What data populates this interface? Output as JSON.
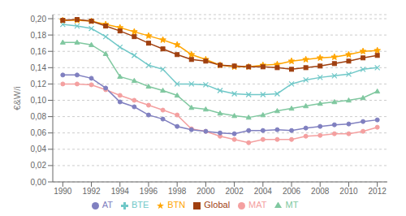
{
  "chart_data": {
    "type": "line",
    "ylabel": "€&W/i",
    "x": [
      1990,
      1991,
      1992,
      1993,
      1994,
      1995,
      1996,
      1997,
      1998,
      1999,
      2000,
      2001,
      2002,
      2003,
      2004,
      2005,
      2006,
      2007,
      2008,
      2009,
      2010,
      2011,
      2012
    ],
    "series": [
      {
        "name": "MAT",
        "color": "#F4A0A0",
        "marker": "circle",
        "values": [
          0.12,
          0.12,
          0.119,
          0.113,
          0.106,
          0.1,
          0.094,
          0.088,
          0.082,
          0.065,
          0.062,
          0.056,
          0.052,
          0.048,
          0.052,
          0.052,
          0.052,
          0.056,
          0.057,
          0.059,
          0.059,
          0.062,
          0.067
        ]
      },
      {
        "name": "AT",
        "color": "#8080C0",
        "marker": "circle",
        "values": [
          0.131,
          0.131,
          0.127,
          0.115,
          0.098,
          0.092,
          0.082,
          0.077,
          0.068,
          0.064,
          0.062,
          0.06,
          0.059,
          0.063,
          0.063,
          0.064,
          0.063,
          0.066,
          0.068,
          0.07,
          0.071,
          0.074,
          0.076
        ]
      },
      {
        "name": "MT",
        "color": "#80C8A0",
        "marker": "triangle",
        "values": [
          0.171,
          0.171,
          0.168,
          0.157,
          0.129,
          0.124,
          0.117,
          0.112,
          0.106,
          0.091,
          0.089,
          0.084,
          0.081,
          0.079,
          0.082,
          0.087,
          0.09,
          0.093,
          0.096,
          0.098,
          0.1,
          0.103,
          0.111
        ]
      },
      {
        "name": "BTE",
        "color": "#70C8C8",
        "marker": "x",
        "values": [
          0.193,
          0.191,
          0.188,
          0.178,
          0.165,
          0.155,
          0.143,
          0.138,
          0.12,
          0.12,
          0.119,
          0.112,
          0.108,
          0.107,
          0.107,
          0.108,
          0.12,
          0.125,
          0.128,
          0.13,
          0.132,
          0.138,
          0.14
        ]
      },
      {
        "name": "BTN",
        "color": "#FFA500",
        "marker": "star",
        "values": [
          0.198,
          0.198,
          0.197,
          0.193,
          0.189,
          0.184,
          0.179,
          0.174,
          0.168,
          0.156,
          0.15,
          0.143,
          0.141,
          0.141,
          0.143,
          0.144,
          0.148,
          0.15,
          0.152,
          0.153,
          0.156,
          0.16,
          0.161
        ]
      },
      {
        "name": "Global",
        "color": "#A04010",
        "marker": "square",
        "values": [
          0.198,
          0.199,
          0.197,
          0.191,
          0.185,
          0.178,
          0.17,
          0.163,
          0.156,
          0.15,
          0.148,
          0.143,
          0.142,
          0.141,
          0.141,
          0.14,
          0.138,
          0.14,
          0.142,
          0.145,
          0.148,
          0.152,
          0.155
        ]
      }
    ],
    "xlim": [
      1989.3,
      2012.7
    ],
    "xticks": [
      1990,
      1992,
      1994,
      1996,
      1998,
      2000,
      2002,
      2004,
      2006,
      2008,
      2010,
      2012
    ],
    "ylim": [
      0,
      0.205
    ],
    "yticks": [
      {
        "value": 0,
        "label": "0,00"
      },
      {
        "value": 0.02,
        "label": "0,02"
      },
      {
        "value": 0.04,
        "label": "0,04"
      },
      {
        "value": 0.06,
        "label": "0,06"
      },
      {
        "value": 0.08,
        "label": "0,08"
      },
      {
        "value": 0.1,
        "label": "0,10"
      },
      {
        "value": 0.12,
        "label": "0,12"
      },
      {
        "value": 0.14,
        "label": "0,14"
      },
      {
        "value": 0.16,
        "label": "0,16"
      },
      {
        "value": 0.18,
        "label": "0,18"
      },
      {
        "value": 0.2,
        "label": "0,20"
      }
    ],
    "grid": true,
    "legend": "bottom"
  }
}
